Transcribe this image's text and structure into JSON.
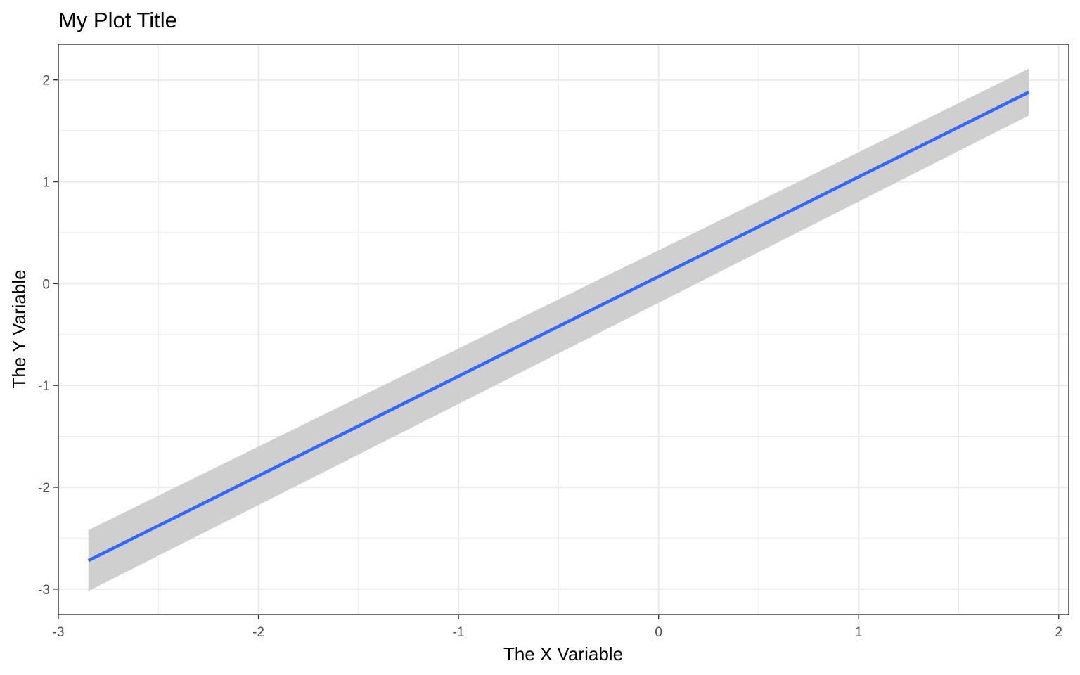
{
  "chart_data": {
    "type": "line",
    "title": "My Plot Title",
    "xlabel": "The X Variable",
    "ylabel": "The Y Variable",
    "xlim": [
      -3.0,
      2.05
    ],
    "ylim": [
      -3.25,
      2.35
    ],
    "grid": true,
    "legend": "none",
    "x_ticks": [
      -3,
      -2,
      -1,
      0,
      1,
      2
    ],
    "x_tick_labels": [
      "-3",
      "-2",
      "-1",
      "0",
      "1",
      "2"
    ],
    "y_ticks": [
      -3,
      -2,
      -1,
      0,
      1,
      2
    ],
    "y_tick_labels": [
      "-3",
      "-2",
      "-1",
      "0",
      "1",
      "2"
    ],
    "x_minor": [
      -2.5,
      -1.5,
      -0.5,
      0.5,
      1.5
    ],
    "y_minor": [
      -2.5,
      -1.5,
      -0.5,
      0.5,
      1.5
    ],
    "series": [
      {
        "x": [
          -2.85,
          1.85
        ],
        "y": [
          -2.72,
          1.88
        ],
        "ci_lower": [
          -3.02,
          1.65
        ],
        "ci_upper": [
          -2.42,
          2.11
        ]
      }
    ],
    "colors": {
      "line": "#3366ff",
      "ribbon": "#cccccc",
      "grid": "#ebebeb",
      "border": "#333333"
    }
  }
}
